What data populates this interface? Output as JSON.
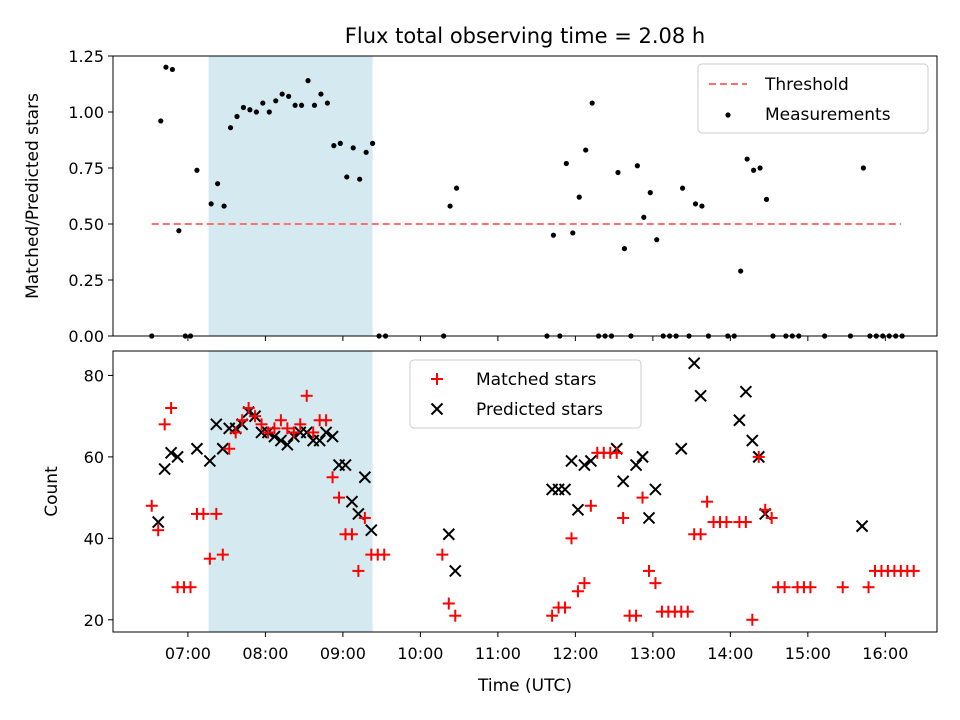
{
  "chart_data": [
    {
      "type": "scatter",
      "title": "Flux total observing time = 2.08 h",
      "xlabel": "",
      "ylabel": "Matched/Predicted stars",
      "xlim": [
        "06:02",
        "16:40"
      ],
      "ylim": [
        0,
        1.25
      ],
      "yticks": [
        "0.00",
        "0.25",
        "0.50",
        "0.75",
        "1.00",
        "1.25"
      ],
      "highlight_interval": {
        "start": "07:16",
        "end": "09:23",
        "color": "#d4eaf0"
      },
      "legend_position": "top-right",
      "legend": [
        "Threshold",
        "Measurements"
      ],
      "threshold": {
        "name": "Threshold",
        "x": [
          "06:32",
          "16:12"
        ],
        "value": 0.5,
        "color": "#ff7070"
      },
      "series": [
        {
          "name": "Measurements",
          "color": "#000000",
          "marker": "dot",
          "points": [
            [
              "06:32",
              0.0
            ],
            [
              "06:39",
              0.96
            ],
            [
              "06:43",
              1.2
            ],
            [
              "06:48",
              1.19
            ],
            [
              "06:53",
              0.47
            ],
            [
              "06:58",
              0.0
            ],
            [
              "07:02",
              0.0
            ],
            [
              "07:07",
              0.74
            ],
            [
              "07:18",
              0.59
            ],
            [
              "07:23",
              0.68
            ],
            [
              "07:28",
              0.58
            ],
            [
              "07:33",
              0.93
            ],
            [
              "07:38",
              0.98
            ],
            [
              "07:43",
              1.02
            ],
            [
              "07:48",
              1.01
            ],
            [
              "07:53",
              1.0
            ],
            [
              "07:58",
              1.04
            ],
            [
              "08:03",
              1.0
            ],
            [
              "08:08",
              1.05
            ],
            [
              "08:13",
              1.08
            ],
            [
              "08:18",
              1.07
            ],
            [
              "08:23",
              1.03
            ],
            [
              "08:28",
              1.03
            ],
            [
              "08:33",
              1.14
            ],
            [
              "08:38",
              1.03
            ],
            [
              "08:43",
              1.08
            ],
            [
              "08:48",
              1.04
            ],
            [
              "08:53",
              0.85
            ],
            [
              "08:58",
              0.86
            ],
            [
              "09:03",
              0.71
            ],
            [
              "09:08",
              0.84
            ],
            [
              "09:13",
              0.7
            ],
            [
              "09:18",
              0.82
            ],
            [
              "09:23",
              0.86
            ],
            [
              "09:28",
              0.0
            ],
            [
              "09:33",
              0.0
            ],
            [
              "10:18",
              0.0
            ],
            [
              "10:23",
              0.58
            ],
            [
              "10:28",
              0.66
            ],
            [
              "11:38",
              0.0
            ],
            [
              "11:43",
              0.45
            ],
            [
              "11:48",
              0.0
            ],
            [
              "11:53",
              0.77
            ],
            [
              "11:58",
              0.46
            ],
            [
              "12:03",
              0.62
            ],
            [
              "12:08",
              0.83
            ],
            [
              "12:13",
              1.04
            ],
            [
              "12:18",
              0.0
            ],
            [
              "12:23",
              0.0
            ],
            [
              "12:28",
              0.0
            ],
            [
              "12:33",
              0.73
            ],
            [
              "12:38",
              0.39
            ],
            [
              "12:43",
              0.0
            ],
            [
              "12:48",
              0.76
            ],
            [
              "12:53",
              0.53
            ],
            [
              "12:58",
              0.64
            ],
            [
              "13:03",
              0.43
            ],
            [
              "13:08",
              0.0
            ],
            [
              "13:13",
              0.0
            ],
            [
              "13:18",
              0.0
            ],
            [
              "13:23",
              0.66
            ],
            [
              "13:28",
              0.0
            ],
            [
              "13:33",
              0.59
            ],
            [
              "13:38",
              0.58
            ],
            [
              "13:43",
              0.0
            ],
            [
              "13:58",
              0.0
            ],
            [
              "14:03",
              0.0
            ],
            [
              "14:08",
              0.29
            ],
            [
              "14:13",
              0.79
            ],
            [
              "14:18",
              0.74
            ],
            [
              "14:23",
              0.75
            ],
            [
              "14:28",
              0.61
            ],
            [
              "14:33",
              0.0
            ],
            [
              "14:43",
              0.0
            ],
            [
              "14:48",
              0.0
            ],
            [
              "14:53",
              0.0
            ],
            [
              "15:13",
              0.0
            ],
            [
              "15:33",
              0.0
            ],
            [
              "15:43",
              0.75
            ],
            [
              "15:48",
              0.0
            ],
            [
              "15:53",
              0.0
            ],
            [
              "15:58",
              0.0
            ],
            [
              "16:03",
              0.0
            ],
            [
              "16:08",
              0.0
            ],
            [
              "16:13",
              0.0
            ]
          ]
        }
      ]
    },
    {
      "type": "scatter",
      "title": "",
      "xlabel": "Time (UTC)",
      "ylabel": "Count",
      "xlim": [
        "06:02",
        "16:40"
      ],
      "ylim": [
        17,
        86
      ],
      "yticks": [
        "20",
        "40",
        "60",
        "80"
      ],
      "xticks": [
        "07:00",
        "08:00",
        "09:00",
        "10:00",
        "11:00",
        "12:00",
        "13:00",
        "14:00",
        "15:00",
        "16:00"
      ],
      "highlight_interval": {
        "start": "07:16",
        "end": "09:23",
        "color": "#d4eaf0"
      },
      "legend_position": "top-center",
      "legend": [
        "Matched stars",
        "Predicted stars"
      ],
      "series": [
        {
          "name": "Matched stars",
          "color": "#ff0000",
          "marker": "plus",
          "points": [
            [
              "06:32",
              48
            ],
            [
              "06:37",
              42
            ],
            [
              "06:42",
              68
            ],
            [
              "06:47",
              72
            ],
            [
              "06:52",
              28
            ],
            [
              "06:57",
              28
            ],
            [
              "07:02",
              28
            ],
            [
              "07:07",
              46
            ],
            [
              "07:12",
              46
            ],
            [
              "07:17",
              35
            ],
            [
              "07:22",
              46
            ],
            [
              "07:27",
              36
            ],
            [
              "07:32",
              62
            ],
            [
              "07:37",
              66
            ],
            [
              "07:42",
              69
            ],
            [
              "07:47",
              72
            ],
            [
              "07:52",
              70
            ],
            [
              "07:57",
              68
            ],
            [
              "08:02",
              66
            ],
            [
              "08:07",
              67
            ],
            [
              "08:12",
              69
            ],
            [
              "08:17",
              67
            ],
            [
              "08:22",
              66
            ],
            [
              "08:27",
              68
            ],
            [
              "08:32",
              75
            ],
            [
              "08:37",
              66
            ],
            [
              "08:42",
              69
            ],
            [
              "08:47",
              69
            ],
            [
              "08:52",
              55
            ],
            [
              "08:57",
              50
            ],
            [
              "09:02",
              41
            ],
            [
              "09:07",
              41
            ],
            [
              "09:12",
              32
            ],
            [
              "09:17",
              45
            ],
            [
              "09:22",
              36
            ],
            [
              "09:27",
              36
            ],
            [
              "09:32",
              36
            ],
            [
              "10:17",
              36
            ],
            [
              "10:22",
              24
            ],
            [
              "10:27",
              21
            ],
            [
              "11:42",
              21
            ],
            [
              "11:47",
              23
            ],
            [
              "11:52",
              23
            ],
            [
              "11:57",
              40
            ],
            [
              "12:02",
              27
            ],
            [
              "12:07",
              29
            ],
            [
              "12:12",
              48
            ],
            [
              "12:17",
              61
            ],
            [
              "12:22",
              61
            ],
            [
              "12:27",
              61
            ],
            [
              "12:32",
              61
            ],
            [
              "12:37",
              45
            ],
            [
              "12:42",
              21
            ],
            [
              "12:47",
              21
            ],
            [
              "12:52",
              50
            ],
            [
              "12:57",
              32
            ],
            [
              "13:02",
              29
            ],
            [
              "13:07",
              22
            ],
            [
              "13:12",
              22
            ],
            [
              "13:17",
              22
            ],
            [
              "13:22",
              22
            ],
            [
              "13:27",
              22
            ],
            [
              "13:32",
              41
            ],
            [
              "13:37",
              41
            ],
            [
              "13:42",
              49
            ],
            [
              "13:47",
              44
            ],
            [
              "13:52",
              44
            ],
            [
              "13:57",
              44
            ],
            [
              "14:07",
              44
            ],
            [
              "14:12",
              44
            ],
            [
              "14:17",
              20
            ],
            [
              "14:22",
              60
            ],
            [
              "14:27",
              47
            ],
            [
              "14:32",
              45
            ],
            [
              "14:37",
              28
            ],
            [
              "14:42",
              28
            ],
            [
              "14:52",
              28
            ],
            [
              "14:57",
              28
            ],
            [
              "15:02",
              28
            ],
            [
              "15:27",
              28
            ],
            [
              "15:47",
              28
            ],
            [
              "15:52",
              32
            ],
            [
              "15:57",
              32
            ],
            [
              "16:02",
              32
            ],
            [
              "16:07",
              32
            ],
            [
              "16:12",
              32
            ],
            [
              "16:17",
              32
            ],
            [
              "16:22",
              32
            ]
          ]
        },
        {
          "name": "Predicted stars",
          "color": "#000000",
          "marker": "x",
          "points": [
            [
              "06:37",
              44
            ],
            [
              "06:42",
              57
            ],
            [
              "06:47",
              61
            ],
            [
              "06:52",
              60
            ],
            [
              "07:07",
              62
            ],
            [
              "07:17",
              59
            ],
            [
              "07:22",
              68
            ],
            [
              "07:27",
              62
            ],
            [
              "07:32",
              67
            ],
            [
              "07:37",
              67
            ],
            [
              "07:42",
              68
            ],
            [
              "07:47",
              71
            ],
            [
              "07:52",
              70
            ],
            [
              "07:57",
              66
            ],
            [
              "08:02",
              66
            ],
            [
              "08:07",
              65
            ],
            [
              "08:12",
              64
            ],
            [
              "08:17",
              63
            ],
            [
              "08:22",
              65
            ],
            [
              "08:27",
              66
            ],
            [
              "08:32",
              66
            ],
            [
              "08:37",
              64
            ],
            [
              "08:42",
              64
            ],
            [
              "08:47",
              66
            ],
            [
              "08:52",
              65
            ],
            [
              "08:57",
              58
            ],
            [
              "09:02",
              58
            ],
            [
              "09:07",
              49
            ],
            [
              "09:12",
              46
            ],
            [
              "09:17",
              55
            ],
            [
              "09:22",
              42
            ],
            [
              "10:22",
              41
            ],
            [
              "10:27",
              32
            ],
            [
              "11:42",
              52
            ],
            [
              "11:47",
              52
            ],
            [
              "11:52",
              52
            ],
            [
              "11:57",
              59
            ],
            [
              "12:02",
              47
            ],
            [
              "12:07",
              58
            ],
            [
              "12:12",
              59
            ],
            [
              "12:32",
              62
            ],
            [
              "12:37",
              54
            ],
            [
              "12:47",
              58
            ],
            [
              "12:52",
              60
            ],
            [
              "12:57",
              45
            ],
            [
              "13:02",
              52
            ],
            [
              "13:22",
              62
            ],
            [
              "13:32",
              83
            ],
            [
              "13:37",
              75
            ],
            [
              "14:07",
              69
            ],
            [
              "14:12",
              76
            ],
            [
              "14:17",
              64
            ],
            [
              "14:22",
              60
            ],
            [
              "14:27",
              46
            ],
            [
              "15:42",
              43
            ]
          ]
        }
      ]
    }
  ]
}
